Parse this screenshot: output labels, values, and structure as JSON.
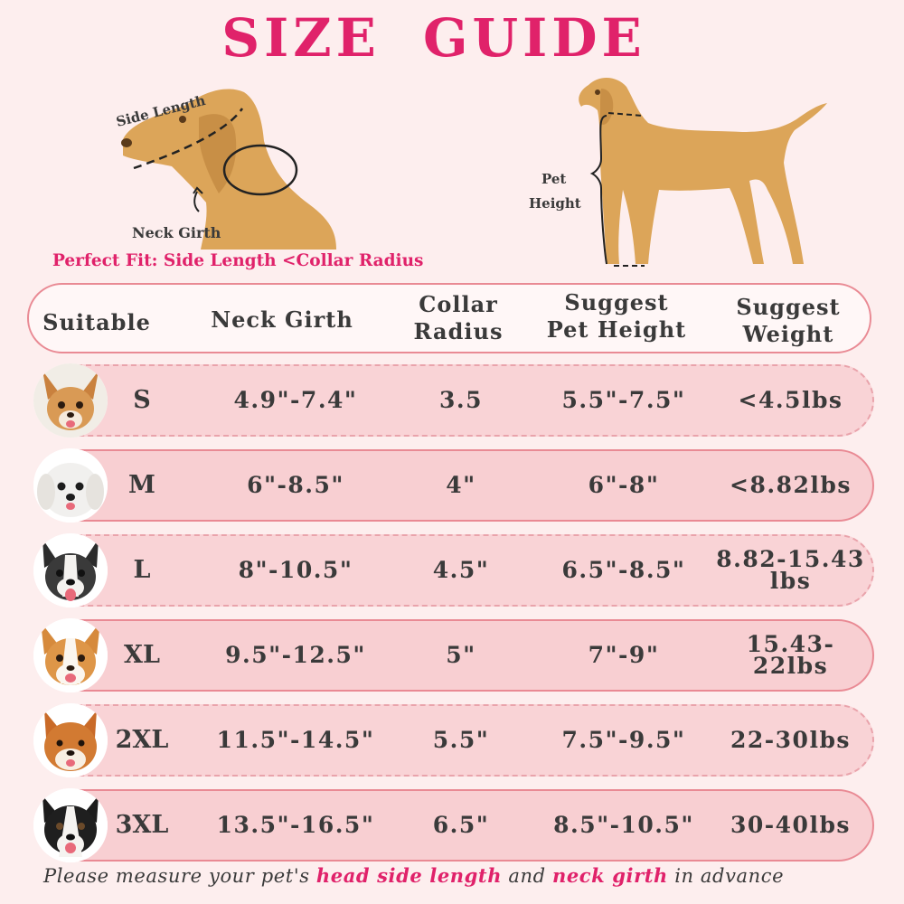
{
  "title": "SIZE GUIDE",
  "diagram": {
    "side_length_label": "Side Length",
    "neck_girth_label": "Neck Girth",
    "pet_label": "Pet",
    "height_label": "Height",
    "perfect_fit": "Perfect Fit: Side Length <Collar Radius",
    "dog_color": "#dca559"
  },
  "table": {
    "headers": {
      "suitable": "Suitable",
      "neck_girth": "Neck Girth",
      "collar_radius": "Collar\nRadius",
      "pet_height": "Suggest\nPet Height",
      "weight": "Suggest\nWeight"
    },
    "rows": [
      {
        "size": "S",
        "neck": "4.9\"-7.4\"",
        "radius": "3.5",
        "height": "5.5\"-7.5\"",
        "weight": "<4.5lbs",
        "dog": "chihuahua"
      },
      {
        "size": "M",
        "neck": "6\"-8.5\"",
        "radius": "4\"",
        "height": "6\"-8\"",
        "weight": "<8.82lbs",
        "dog": "maltese"
      },
      {
        "size": "L",
        "neck": "8\"-10.5\"",
        "radius": "4.5\"",
        "height": "6.5\"-8.5\"",
        "weight": "8.82-15.43\nlbs",
        "dog": "french-bulldog"
      },
      {
        "size": "XL",
        "neck": "9.5\"-12.5\"",
        "radius": "5\"",
        "height": "7\"-9\"",
        "weight": "15.43-22lbs",
        "dog": "corgi"
      },
      {
        "size": "2XL",
        "neck": "11.5\"-14.5\"",
        "radius": "5.5\"",
        "height": "7.5\"-9.5\"",
        "weight": "22-30lbs",
        "dog": "shiba"
      },
      {
        "size": "3XL",
        "neck": "13.5\"-16.5\"",
        "radius": "6.5\"",
        "height": "8.5\"-10.5\"",
        "weight": "30-40lbs",
        "dog": "border-collie"
      }
    ]
  },
  "footer": {
    "part1": "Please measure your pet's ",
    "highlight1": "head side length",
    "part2": " and ",
    "highlight2": "neck girth",
    "part3": " in advance"
  },
  "colors": {
    "accent": "#e0226a",
    "row_fill": "#f8cfd2",
    "border": "#e98a94",
    "background": "#fdeeee"
  }
}
